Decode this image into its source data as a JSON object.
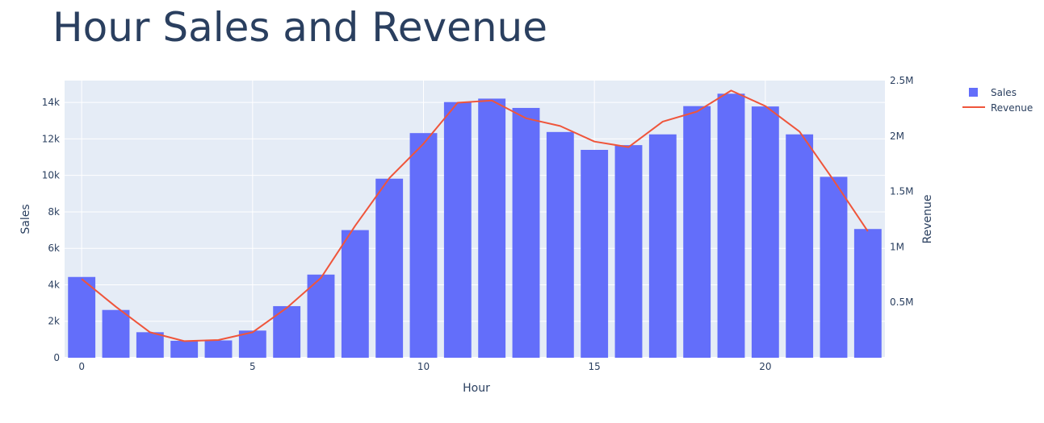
{
  "chart_data": {
    "title": "Hour Sales and Revenue",
    "xlabel": "Hour",
    "ylabel": "Sales",
    "y2label": "Revenue",
    "x": [
      0,
      1,
      2,
      3,
      4,
      5,
      6,
      7,
      8,
      9,
      10,
      11,
      12,
      13,
      14,
      15,
      16,
      17,
      18,
      19,
      20,
      21,
      22,
      23
    ],
    "xlim": [
      -0.5,
      23.5
    ],
    "x_ticks": [
      0,
      5,
      10,
      15,
      20
    ],
    "ylim": [
      0,
      15200
    ],
    "y_ticks": [
      0,
      2000,
      4000,
      6000,
      8000,
      10000,
      12000,
      14000
    ],
    "y_tick_labels": [
      "0",
      "2k",
      "4k",
      "6k",
      "8k",
      "10k",
      "12k",
      "14k"
    ],
    "y2lim": [
      0,
      2500000
    ],
    "y2_ticks": [
      500000,
      1000000,
      1500000,
      2000000,
      2500000
    ],
    "y2_tick_labels": [
      "0.5M",
      "1M",
      "1.5M",
      "2M",
      "2.5M"
    ],
    "series": [
      {
        "name": "Sales",
        "type": "bar",
        "axis": "left",
        "color": "#636efa",
        "values": [
          4430,
          2620,
          1400,
          930,
          950,
          1490,
          2830,
          4560,
          7000,
          9820,
          12320,
          14020,
          14210,
          13700,
          12380,
          11400,
          11660,
          12250,
          13800,
          14480,
          13780,
          12250,
          9920,
          7060
        ]
      },
      {
        "name": "Revenue",
        "type": "line",
        "axis": "right",
        "color": "#ef553b",
        "values": [
          710000,
          460000,
          230000,
          150000,
          160000,
          230000,
          450000,
          720000,
          1190000,
          1620000,
          1930000,
          2300000,
          2320000,
          2160000,
          2090000,
          1950000,
          1900000,
          2130000,
          2220000,
          2410000,
          2270000,
          2040000,
          1600000,
          1140000
        ]
      }
    ],
    "legend_position": "top-right",
    "grid": true,
    "plot_background": "#e5ecf6"
  }
}
